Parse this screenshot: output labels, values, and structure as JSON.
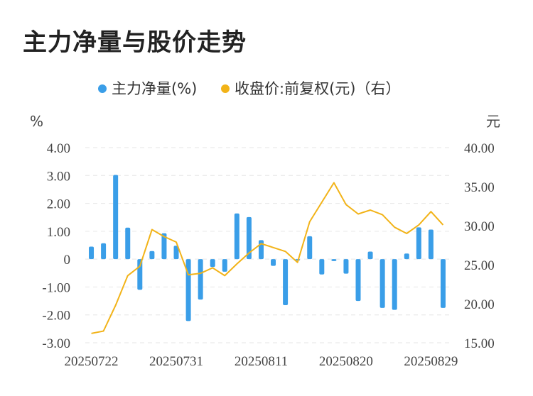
{
  "title": "主力净量与股价走势",
  "colors": {
    "bar": "#3a9ee8",
    "line": "#f2b318",
    "grid": "#e6e6e6"
  },
  "chart_data": {
    "type": "bar+line",
    "legend": [
      {
        "name": "主力净量(%)",
        "color": "#3a9ee8",
        "marker": "circle"
      },
      {
        "name": "收盘价:前复权(元)（右）",
        "color": "#f2b318",
        "marker": "circle"
      }
    ],
    "y_left": {
      "unit": "%",
      "min": -3,
      "max": 4,
      "ticks": [
        "4.00",
        "3.00",
        "2.00",
        "1.00",
        "0",
        "-1.00",
        "-2.00",
        "-3.00"
      ]
    },
    "y_right": {
      "unit": "元",
      "min": 15,
      "max": 40,
      "ticks": [
        "40.00",
        "35.00",
        "30.00",
        "25.00",
        "20.00",
        "15.00"
      ]
    },
    "x_labels": [
      "20250722",
      "20250731",
      "20250811",
      "20250820",
      "20250829"
    ],
    "x_label_indices": [
      0,
      7,
      14,
      21,
      28
    ],
    "series": [
      {
        "name": "主力净量(%)",
        "type": "bar",
        "values": [
          0.45,
          0.57,
          3.02,
          1.13,
          -1.1,
          0.29,
          0.93,
          0.48,
          -2.22,
          -1.45,
          -0.28,
          -0.45,
          1.64,
          1.51,
          0.68,
          -0.24,
          -1.65,
          -0.05,
          0.82,
          -0.55,
          -0.07,
          -0.52,
          -1.5,
          0.27,
          -1.75,
          -1.82,
          0.2,
          1.14,
          1.06,
          -1.75
        ]
      },
      {
        "name": "收盘价:前复权(元)",
        "type": "line",
        "axis": "right",
        "values": [
          16.2,
          16.5,
          19.8,
          23.6,
          24.8,
          29.5,
          28.6,
          27.9,
          23.7,
          23.9,
          24.6,
          23.6,
          25.1,
          26.5,
          27.7,
          27.2,
          26.7,
          25.3,
          30.5,
          33.0,
          35.5,
          32.7,
          31.5,
          32.0,
          31.4,
          29.8,
          29.0,
          30.1,
          31.8,
          30.1
        ]
      }
    ]
  }
}
